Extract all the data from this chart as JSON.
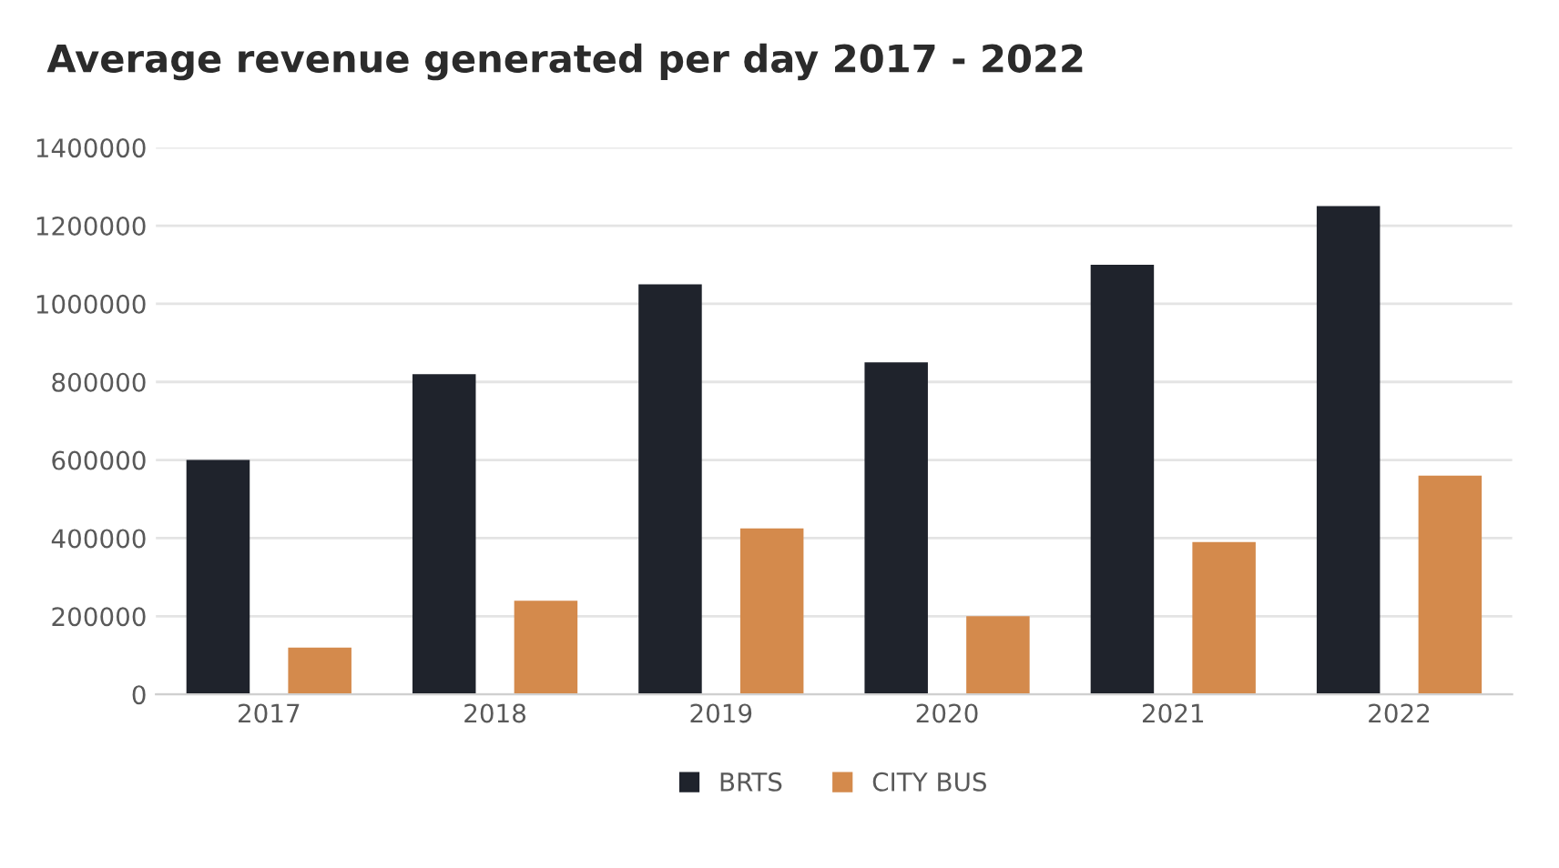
{
  "chart_data": {
    "type": "bar",
    "title": "Average revenue generated per day 2017 - 2022",
    "categories": [
      "2017",
      "2018",
      "2019",
      "2020",
      "2021",
      "2022"
    ],
    "series": [
      {
        "name": "BRTS",
        "color": "#1f232c",
        "values": [
          600000,
          820000,
          1050000,
          850000,
          1100000,
          1250000
        ]
      },
      {
        "name": "CITY BUS",
        "color": "#d48a4c",
        "values": [
          120000,
          240000,
          425000,
          200000,
          390000,
          560000
        ]
      }
    ],
    "ylim": [
      0,
      1400000
    ],
    "yticks": [
      0,
      200000,
      400000,
      600000,
      800000,
      1000000,
      1200000,
      1400000
    ],
    "grid": "y",
    "legend": "bottom"
  }
}
